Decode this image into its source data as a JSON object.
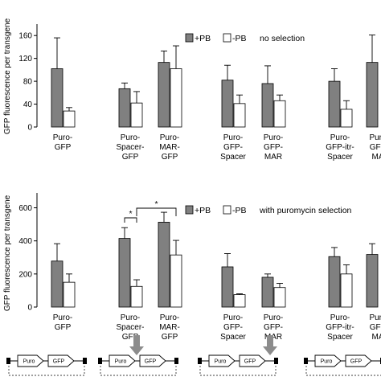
{
  "ylabel": "GFP fluorescence per transgene",
  "legend_pb_plus": "+PB",
  "legend_pb_minus": "-PB",
  "colors": {
    "plus": "#808080",
    "minus": "#ffffff",
    "outline": "#000000",
    "arrow": "#8c8c8c"
  },
  "schematic": {
    "puro": "Puro",
    "gfp": "GFP"
  },
  "chart_data": [
    {
      "type": "bar",
      "annotation": "no selection",
      "ylim": [
        0,
        180
      ],
      "yticks": [
        0,
        40,
        80,
        120,
        160
      ],
      "categories": [
        [
          "Puro-",
          "GFP"
        ],
        [
          "Puro-",
          "Spacer-",
          "GFP"
        ],
        [
          "Puro-",
          "MAR-",
          "GFP"
        ],
        [
          "Puro-",
          "GFP-",
          "Spacer"
        ],
        [
          "Puro-",
          "GFP-",
          "MAR"
        ],
        [
          "Puro-",
          "GFP-itr-",
          "Spacer"
        ],
        [
          "Puro",
          "GFP",
          "MA"
        ]
      ],
      "series": [
        {
          "name": "+PB",
          "values": [
            102,
            67,
            113,
            82,
            76,
            80,
            113
          ],
          "err": [
            54,
            10,
            20,
            26,
            31,
            22,
            48
          ]
        },
        {
          "name": "-PB",
          "values": [
            28,
            42,
            102,
            41,
            46,
            31,
            null
          ],
          "err": [
            6,
            20,
            40,
            15,
            10,
            15,
            null
          ]
        }
      ]
    },
    {
      "type": "bar",
      "annotation": "with puromycin selection",
      "ylim": [
        0,
        690
      ],
      "yticks": [
        0,
        200,
        400,
        600
      ],
      "categories": [
        [
          "Puro-",
          "GFP"
        ],
        [
          "Puro-",
          "Spacer-",
          "GFP"
        ],
        [
          "Puro-",
          "MAR-",
          "GFP"
        ],
        [
          "Puro-",
          "GFP-",
          "Spacer"
        ],
        [
          "Puro-",
          "GFP-",
          "MAR"
        ],
        [
          "Puro-",
          "GFP-itr-",
          "Spacer"
        ],
        [
          "Puro",
          "GFP",
          "MA"
        ]
      ],
      "series": [
        {
          "name": "+PB",
          "values": [
            278,
            415,
            513,
            243,
            180,
            305,
            318
          ],
          "err": [
            105,
            65,
            60,
            80,
            20,
            55,
            65
          ]
        },
        {
          "name": "-PB",
          "values": [
            150,
            125,
            315,
            75,
            118,
            200,
            null
          ],
          "err": [
            50,
            40,
            88,
            5,
            25,
            55,
            null
          ]
        }
      ],
      "significance": [
        {
          "label": "*",
          "from": 1,
          "to": 1
        },
        {
          "label": "*",
          "from": 1,
          "to": 2
        }
      ]
    }
  ]
}
